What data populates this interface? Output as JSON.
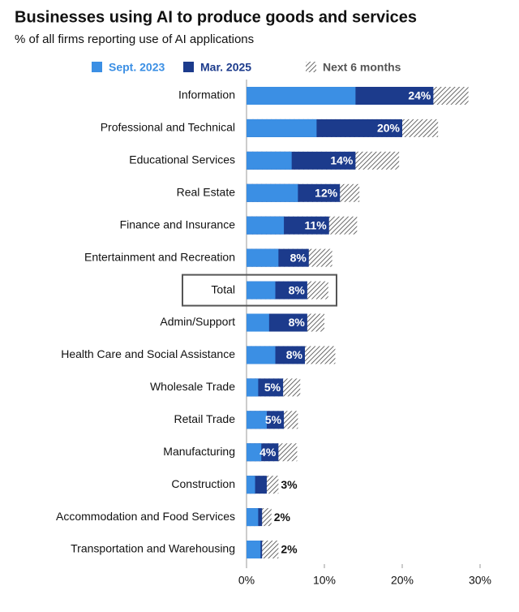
{
  "chart_data": {
    "type": "bar",
    "orientation": "horizontal",
    "title": "Businesses using AI to produce goods and services",
    "subtitle": "% of all firms reporting use of AI applications",
    "categories": [
      "Information",
      "Professional and Technical",
      "Educational Services",
      "Real Estate",
      "Finance and Insurance",
      "Entertainment and Recreation",
      "Total",
      "Admin/Support",
      "Health Care and Social Assistance",
      "Wholesale Trade",
      "Retail Trade",
      "Manufacturing",
      "Construction",
      "Accommodation and Food Services",
      "Transportation and Warehousing"
    ],
    "series": [
      {
        "name": "Next 6 months",
        "color": "#555555",
        "pattern": "hatch",
        "values": [
          28.5,
          24.6,
          19.6,
          14.5,
          14.2,
          11.0,
          10.5,
          10.0,
          11.4,
          6.9,
          6.6,
          6.5,
          4.1,
          3.2,
          4.1
        ]
      },
      {
        "name": "Mar. 2025",
        "color": "#1c3b8c",
        "values": [
          24,
          20,
          14,
          12,
          10.6,
          8,
          7.8,
          7.8,
          7.5,
          4.7,
          4.8,
          4.1,
          2.6,
          2.0,
          2.0
        ],
        "value_labels": [
          "24%",
          "20%",
          "14%",
          "12%",
          "11%",
          "8%",
          "8%",
          "8%",
          "8%",
          "5%",
          "5%",
          "4%",
          "3%",
          "2%",
          "2%"
        ]
      },
      {
        "name": "Sept. 2023",
        "color": "#3b8fe4",
        "values": [
          14.0,
          9.0,
          5.8,
          6.6,
          4.8,
          4.1,
          3.7,
          2.9,
          3.7,
          1.5,
          2.6,
          1.9,
          1.1,
          1.5,
          1.8
        ]
      }
    ],
    "xlim": [
      0,
      30
    ],
    "xticks": [
      {
        "value": 0,
        "label": "0%"
      },
      {
        "value": 10,
        "label": "10%"
      },
      {
        "value": 20,
        "label": "20%"
      },
      {
        "value": 30,
        "label": "30%"
      }
    ],
    "highlight": "Total"
  }
}
